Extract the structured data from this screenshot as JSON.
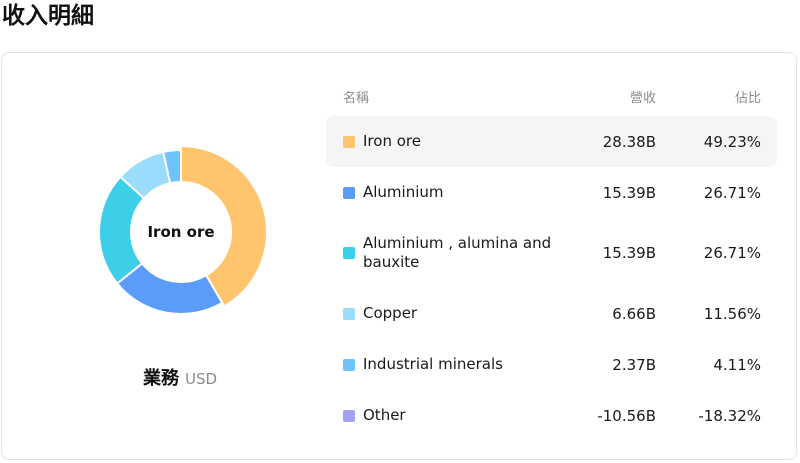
{
  "page": {
    "title": "收入明細"
  },
  "chart": {
    "center_label": "Iron ore",
    "caption_title": "業務",
    "caption_unit": "USD"
  },
  "table": {
    "headers": {
      "name": "名稱",
      "revenue": "營收",
      "share": "佔比"
    },
    "rows": [
      {
        "name": "Iron ore",
        "revenue": "28.38B",
        "share": "49.23%",
        "color": "#FFC56E"
      },
      {
        "name": "Aluminium",
        "revenue": "15.39B",
        "share": "26.71%",
        "color": "#5B9BFA"
      },
      {
        "name": "Aluminium , alumina and bauxite",
        "revenue": "15.39B",
        "share": "26.71%",
        "color": "#3ECFE8"
      },
      {
        "name": "Copper",
        "revenue": "6.66B",
        "share": "11.56%",
        "color": "#9ADCFB"
      },
      {
        "name": "Industrial minerals",
        "revenue": "2.37B",
        "share": "4.11%",
        "color": "#6EC3F9"
      },
      {
        "name": "Other",
        "revenue": "-10.56B",
        "share": "-18.32%",
        "color": "#A3A3F5"
      }
    ]
  },
  "chart_data": {
    "type": "pie",
    "categories": [
      "Iron ore",
      "Aluminium",
      "Aluminium , alumina and bauxite",
      "Copper",
      "Industrial minerals"
    ],
    "values": [
      28.38,
      15.39,
      15.39,
      6.66,
      2.37
    ],
    "colors": [
      "#FFC56E",
      "#5B9BFA",
      "#3ECFE8",
      "#9ADCFB",
      "#6EC3F9"
    ],
    "highlight_index": 0
  }
}
